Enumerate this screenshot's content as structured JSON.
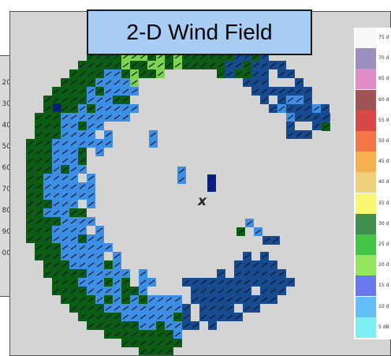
{
  "title": "2-D Wind Field",
  "radar_marker": "x",
  "side_ticks": [
    "20",
    "30",
    "40",
    "50",
    "60",
    "70",
    "80",
    "90",
    "00"
  ],
  "legend": [
    {
      "label": "75 d",
      "color": "#f7f7f7"
    },
    {
      "label": "70 d",
      "color": "#9d8ec2"
    },
    {
      "label": "65 d",
      "color": "#e08cc6"
    },
    {
      "label": "60 d",
      "color": "#a05555"
    },
    {
      "label": "55 d",
      "color": "#d84848"
    },
    {
      "label": "50 d",
      "color": "#f47648"
    },
    {
      "label": "45 d",
      "color": "#f6b050"
    },
    {
      "label": "40 d",
      "color": "#f0cf7c"
    },
    {
      "label": "35 d",
      "color": "#f8f870"
    },
    {
      "label": "30 d",
      "color": "#3f8f4f"
    },
    {
      "label": "25 d",
      "color": "#44c444"
    },
    {
      "label": "20 d",
      "color": "#95e65f"
    },
    {
      "label": "15 d",
      "color": "#6a78f0"
    },
    {
      "label": "10 d",
      "color": "#64bef5"
    },
    {
      "label": "5 dB",
      "color": "#7ef0f4"
    }
  ],
  "colors": {
    "dark_blue": "#174a8e",
    "light_blue": "#3d8fe6",
    "navy": "#0a1f8a",
    "dark_green": "#0d5c14",
    "light_green": "#7fd34e",
    "background": "#d4d4d4",
    "title_fill": "#a7cdf5"
  }
}
